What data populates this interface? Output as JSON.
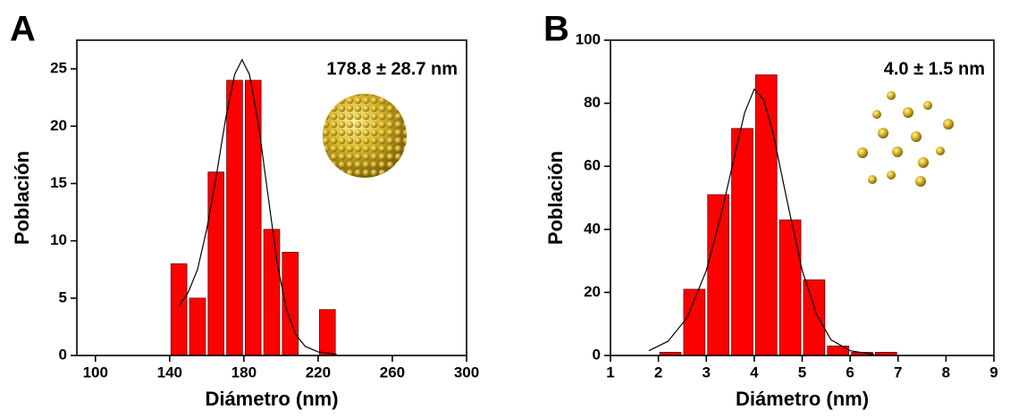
{
  "chart_data": [
    {
      "type": "histogram",
      "label": "A",
      "annotation": "178.8 ± 28.7 nm",
      "x_label": "Diámetro (nm)",
      "y_label": "Población",
      "color": "#ff0000",
      "bins": [
        140,
        150,
        160,
        170,
        180,
        190,
        200,
        210,
        220,
        230
      ],
      "values": [
        8,
        5,
        16,
        24,
        24,
        11,
        9,
        0,
        4
      ],
      "xlim": [
        90,
        300
      ],
      "xticks": [
        100,
        140,
        180,
        220,
        260,
        300
      ],
      "ylim": [
        0,
        27.5
      ],
      "yticks": [
        0,
        5,
        10,
        15,
        20,
        25
      ],
      "fit": {
        "color": "#000000",
        "x": [
          145,
          150,
          155,
          160,
          165,
          170,
          175,
          179,
          183,
          188,
          193,
          198,
          203,
          208,
          213,
          220,
          230
        ],
        "values": [
          4.3,
          5.5,
          7.5,
          11,
          15.5,
          20.5,
          24.5,
          25.8,
          24.5,
          20,
          14,
          8,
          4,
          1.8,
          0.8,
          0.3,
          0.1
        ]
      }
    },
    {
      "type": "histogram",
      "label": "B",
      "annotation": "4.0 ± 1.5 nm",
      "x_label": "Diámetro (nm)",
      "y_label": "Población",
      "color": "#ff0000",
      "bins": [
        2.0,
        2.5,
        3.0,
        3.5,
        4.0,
        4.5,
        5.0,
        5.5,
        6.0,
        6.5,
        7.0
      ],
      "values": [
        1,
        21,
        51,
        72,
        89,
        43,
        24,
        3,
        1,
        1
      ],
      "xlim": [
        1,
        9
      ],
      "xticks": [
        1,
        2,
        3,
        4,
        5,
        6,
        7,
        8,
        9
      ],
      "ylim": [
        0,
        100
      ],
      "yticks": [
        0,
        20,
        40,
        60,
        80,
        100
      ],
      "fit": {
        "color": "#000000",
        "x": [
          1.8,
          2.2,
          2.6,
          3.0,
          3.3,
          3.6,
          3.8,
          4.0,
          4.2,
          4.4,
          4.7,
          5.0,
          5.3,
          5.6,
          6.0,
          6.5
        ],
        "values": [
          1.5,
          4.5,
          12,
          27,
          44,
          64,
          77,
          84.5,
          81,
          70,
          48,
          27,
          13,
          5,
          1.5,
          0.3
        ]
      }
    }
  ]
}
